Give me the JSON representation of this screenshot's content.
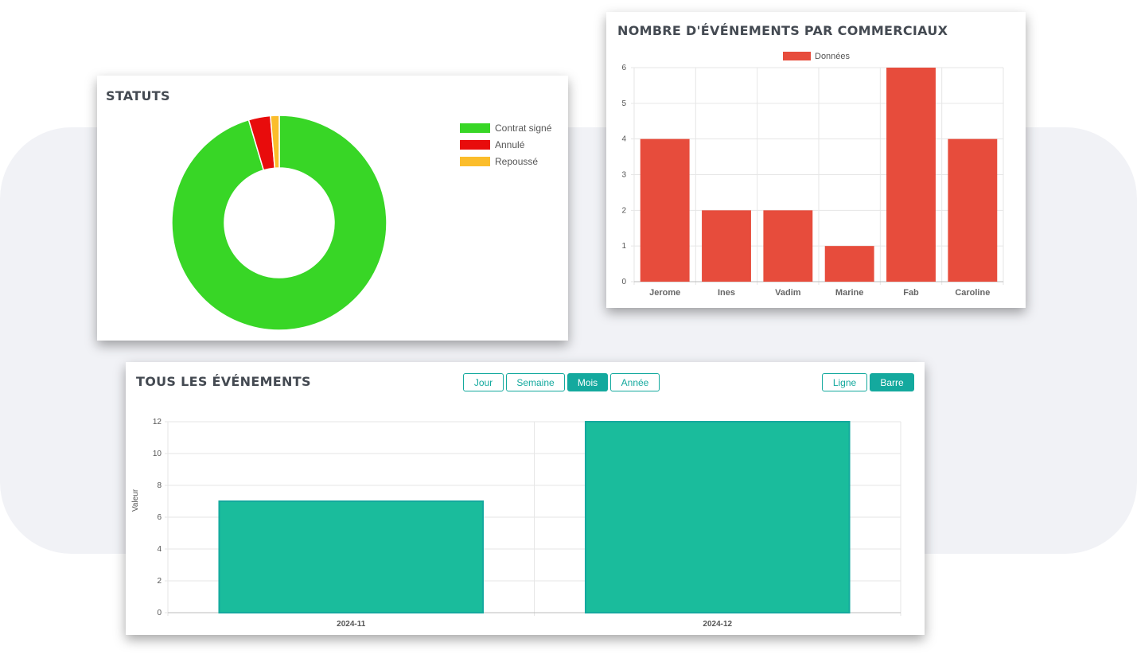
{
  "colors": {
    "green": "#38d626",
    "red": "#e80c0c",
    "orange": "#fbbd2b",
    "bar_red": "#e74c3c",
    "teal": "#1abc9c",
    "teal_border": "#14a99e"
  },
  "statuts": {
    "title": "STATUTS",
    "legend": [
      {
        "label": "Contrat signé",
        "color": "#38d626"
      },
      {
        "label": "Annulé",
        "color": "#e80c0c"
      },
      {
        "label": "Repoussé",
        "color": "#fbbd2b"
      }
    ]
  },
  "commerciaux": {
    "title": "NOMBRE D'ÉVÉNEMENTS PAR COMMERCIAUX",
    "legend_label": "Données"
  },
  "evenements": {
    "title": "TOUS LES ÉVÉNEMENTS",
    "period_buttons": [
      {
        "label": "Jour",
        "active": false
      },
      {
        "label": "Semaine",
        "active": false
      },
      {
        "label": "Mois",
        "active": true
      },
      {
        "label": "Année",
        "active": false
      }
    ],
    "type_buttons": [
      {
        "label": "Ligne",
        "active": false
      },
      {
        "label": "Barre",
        "active": true
      }
    ],
    "y_axis_label": "Valeur"
  },
  "chart_data": [
    {
      "type": "pie",
      "variant": "doughnut",
      "title": "STATUTS",
      "categories": [
        "Contrat signé",
        "Annulé",
        "Repoussé"
      ],
      "values": [
        29,
        1,
        0.4
      ],
      "legend": "right"
    },
    {
      "type": "bar",
      "title": "NOMBRE D'ÉVÉNEMENTS PAR COMMERCIAUX",
      "categories": [
        "Jerome",
        "Ines",
        "Vadim",
        "Marine",
        "Fab",
        "Caroline"
      ],
      "series": [
        {
          "name": "Données",
          "values": [
            4,
            2,
            2,
            1,
            6,
            4
          ]
        }
      ],
      "ylim": [
        0,
        6
      ],
      "yticks": [
        0,
        1,
        2,
        3,
        4,
        5,
        6
      ],
      "grid": true,
      "legend": "top"
    },
    {
      "type": "bar",
      "title": "TOUS LES ÉVÉNEMENTS",
      "categories": [
        "2024-11",
        "2024-12"
      ],
      "values": [
        7,
        12
      ],
      "ylabel": "Valeur",
      "ylim": [
        0,
        12
      ],
      "yticks": [
        0,
        2,
        4,
        6,
        8,
        10,
        12
      ],
      "grid": true
    }
  ]
}
